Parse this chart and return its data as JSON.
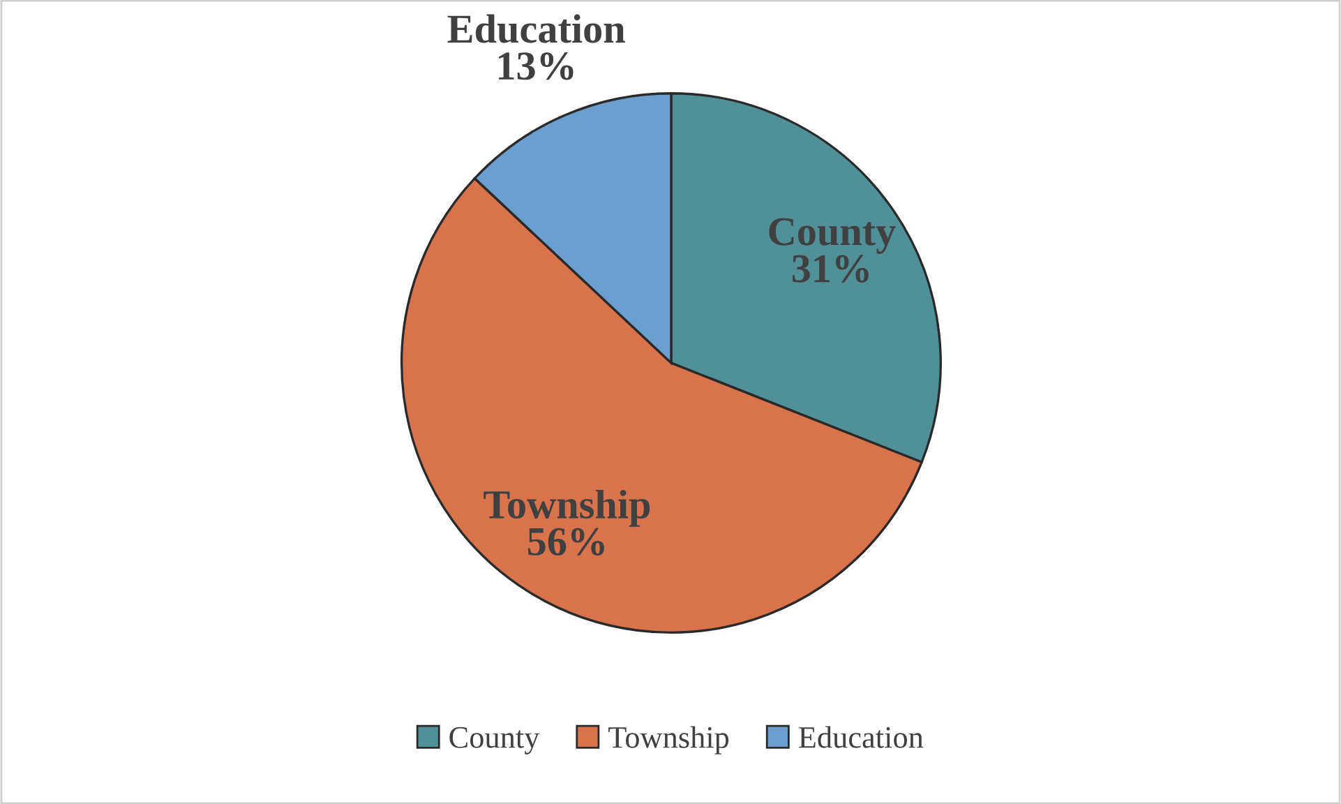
{
  "chart_data": {
    "type": "pie",
    "categories": [
      "County",
      "Township",
      "Education"
    ],
    "values": [
      31,
      56,
      13
    ],
    "value_labels": [
      "31%",
      "56%",
      "13%"
    ],
    "colors": [
      "#4f9196",
      "#d9734b",
      "#6a9fd0"
    ],
    "legend": "bottom"
  }
}
